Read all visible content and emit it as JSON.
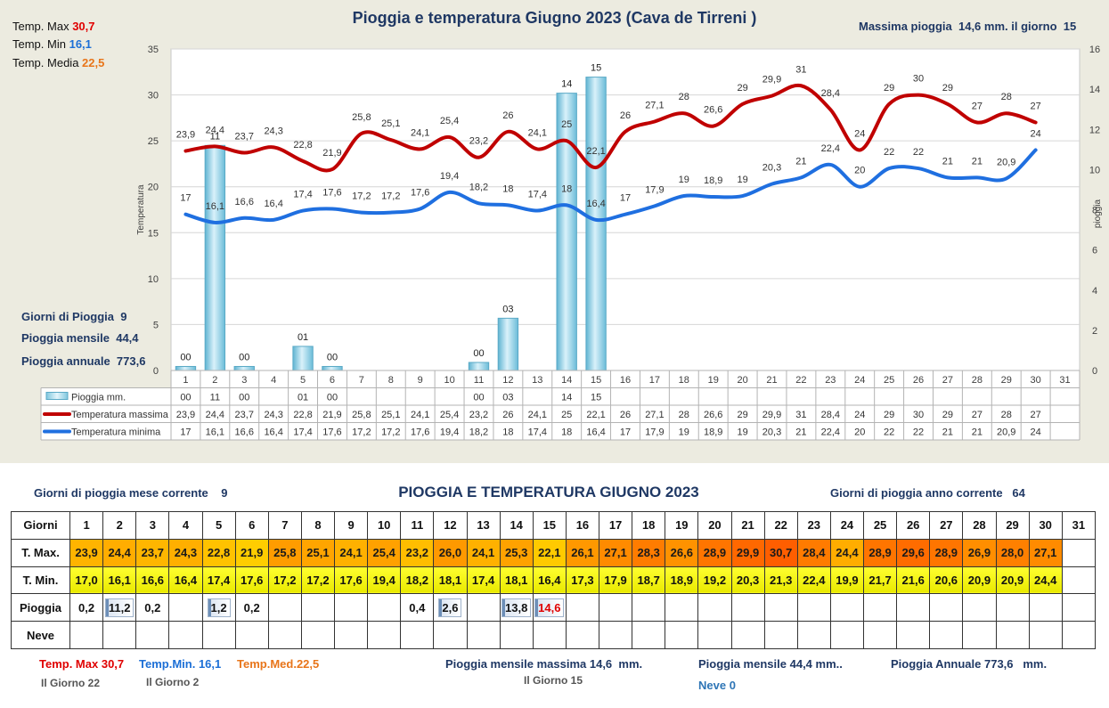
{
  "chart": {
    "title": "Pioggia e temperatura Giugno 2023 (Cava de Tirreni )",
    "max_rain_label": "Massima pioggia",
    "max_rain_value": "14,6",
    "max_rain_unit_day": "mm. il giorno",
    "max_rain_day": "15",
    "left_axis_label": "Temperatura",
    "right_axis_label": "pioggia",
    "stats": {
      "tmax_label": "Temp. Max",
      "tmax_value": "30,7",
      "tmin_label": "Temp. Min",
      "tmin_value": "16,1",
      "tmed_label": "Temp. Media",
      "tmed_value": "22,5"
    },
    "left_stats": {
      "rain_days_label": "Giorni di Pioggia",
      "rain_days_value": "9",
      "monthly_label": "Pioggia mensile",
      "monthly_value": "44,4",
      "annual_label": "Pioggia annuale",
      "annual_value": "773,6"
    },
    "legend": {
      "rain": "Pioggia mm.",
      "tmax": "Temperatura massima",
      "tmin": "Temperatura minima"
    }
  },
  "chart_data": {
    "type": "bar",
    "categories": [
      "1",
      "2",
      "3",
      "4",
      "5",
      "6",
      "7",
      "8",
      "9",
      "10",
      "11",
      "12",
      "13",
      "14",
      "15",
      "16",
      "17",
      "18",
      "19",
      "20",
      "21",
      "22",
      "23",
      "24",
      "25",
      "26",
      "27",
      "28",
      "29",
      "30",
      "31"
    ],
    "ylim": [
      0,
      35
    ],
    "yticks": [
      "0",
      "5",
      "10",
      "15",
      "20",
      "25",
      "30",
      "35"
    ],
    "y2lim": [
      0,
      16
    ],
    "y2ticks": [
      "0",
      "2",
      "4",
      "6",
      "8",
      "10",
      "12",
      "14",
      "16"
    ],
    "colors": {
      "rain": "#8fd0e6",
      "tmax": "#c00000",
      "tmin": "#1f6fe0"
    },
    "series": [
      {
        "name": "Pioggia mm.",
        "axis": "right",
        "values": [
          0.2,
          11.2,
          0.2,
          null,
          1.2,
          0.2,
          null,
          null,
          null,
          null,
          0.4,
          2.6,
          null,
          13.8,
          14.6,
          null,
          null,
          null,
          null,
          null,
          null,
          null,
          null,
          null,
          null,
          null,
          null,
          null,
          null,
          null,
          null
        ],
        "labels": [
          "00",
          "11",
          "00",
          "",
          "01",
          "00",
          "",
          "",
          "",
          "",
          "00",
          "03",
          "",
          "14",
          "15",
          "",
          "",
          "",
          "",
          "",
          "",
          "",
          "",
          "",
          "",
          "",
          "",
          "",
          "",
          "",
          ""
        ]
      },
      {
        "name": "Temperatura massima",
        "axis": "left",
        "values": [
          23.9,
          24.4,
          23.7,
          24.3,
          22.8,
          21.9,
          25.8,
          25.1,
          24.1,
          25.4,
          23.2,
          26,
          24.1,
          25,
          22.1,
          26,
          27.1,
          28,
          26.6,
          29,
          29.9,
          31,
          28.4,
          24,
          29,
          30,
          29,
          27,
          28,
          27,
          null
        ],
        "labels": [
          "23,9",
          "24,4",
          "23,7",
          "24,3",
          "22,8",
          "21,9",
          "25,8",
          "25,1",
          "24,1",
          "25,4",
          "23,2",
          "26",
          "24,1",
          "25",
          "22,1",
          "26",
          "27,1",
          "28",
          "26,6",
          "29",
          "29,9",
          "31",
          "28,4",
          "24",
          "29",
          "30",
          "29",
          "27",
          "28",
          "27",
          ""
        ]
      },
      {
        "name": "Temperatura minima",
        "axis": "left",
        "values": [
          17,
          16.1,
          16.6,
          16.4,
          17.4,
          17.6,
          17.2,
          17.2,
          17.6,
          19.4,
          18.2,
          18,
          17.4,
          18,
          16.4,
          17,
          17.9,
          19,
          18.9,
          19,
          20.3,
          21,
          22.4,
          20,
          22,
          22,
          21,
          21,
          20.9,
          24,
          null
        ],
        "labels": [
          "17",
          "16,1",
          "16,6",
          "16,4",
          "17,4",
          "17,6",
          "17,2",
          "17,2",
          "17,6",
          "19,4",
          "18,2",
          "18",
          "17,4",
          "18",
          "16,4",
          "17",
          "17,9",
          "19",
          "18,9",
          "19",
          "20,3",
          "21",
          "22,4",
          "20",
          "22",
          "22",
          "21",
          "21",
          "20,9",
          "24",
          ""
        ]
      }
    ]
  },
  "table": {
    "title": "PIOGGIA E TEMPERATURA GIUGNO 2023",
    "rain_days_month_label": "Giorni di pioggia mese corrente",
    "rain_days_month_value": "9",
    "rain_days_year_label": "Giorni di pioggia anno corrente",
    "rain_days_year_value": "64",
    "row_headers": {
      "days": "Giorni",
      "tmax": "T. Max.",
      "tmin": "T. Min.",
      "rain": "Pioggia",
      "snow": "Neve"
    },
    "days": [
      "1",
      "2",
      "3",
      "4",
      "5",
      "6",
      "7",
      "8",
      "9",
      "10",
      "11",
      "12",
      "13",
      "14",
      "15",
      "16",
      "17",
      "18",
      "19",
      "20",
      "21",
      "22",
      "23",
      "24",
      "25",
      "26",
      "27",
      "28",
      "29",
      "30",
      "31"
    ],
    "tmax": [
      "23,9",
      "24,4",
      "23,7",
      "24,3",
      "22,8",
      "21,9",
      "25,8",
      "25,1",
      "24,1",
      "25,4",
      "23,2",
      "26,0",
      "24,1",
      "25,3",
      "22,1",
      "26,1",
      "27,1",
      "28,3",
      "26,6",
      "28,9",
      "29,9",
      "30,7",
      "28,4",
      "24,4",
      "28,9",
      "29,6",
      "28,9",
      "26,9",
      "28,0",
      "27,1",
      ""
    ],
    "tmin": [
      "17,0",
      "16,1",
      "16,6",
      "16,4",
      "17,4",
      "17,6",
      "17,2",
      "17,2",
      "17,6",
      "19,4",
      "18,2",
      "18,1",
      "17,4",
      "18,1",
      "16,4",
      "17,3",
      "17,9",
      "18,7",
      "18,9",
      "19,2",
      "20,3",
      "21,3",
      "22,4",
      "19,9",
      "21,7",
      "21,6",
      "20,6",
      "20,9",
      "20,9",
      "24,4",
      ""
    ],
    "rain": [
      "0,2",
      "11,2",
      "0,2",
      "",
      "1,2",
      "0,2",
      "",
      "",
      "",
      "",
      "0,4",
      "2,6",
      "",
      "13,8",
      "14,6",
      "",
      "",
      "",
      "",
      "",
      "",
      "",
      "",
      "",
      "",
      "",
      "",
      "",
      "",
      "",
      ""
    ],
    "rain_max_index": 14,
    "tmax_values": [
      23.9,
      24.4,
      23.7,
      24.3,
      22.8,
      21.9,
      25.8,
      25.1,
      24.1,
      25.4,
      23.2,
      26.0,
      24.1,
      25.3,
      22.1,
      26.1,
      27.1,
      28.3,
      26.6,
      28.9,
      29.9,
      30.7,
      28.4,
      24.4,
      28.9,
      29.6,
      28.9,
      26.9,
      28.0,
      27.1,
      null
    ]
  },
  "footer": {
    "tmax_label": "Temp. Max",
    "tmax_value": "30,7",
    "tmax_day": "Il Giorno  22",
    "tmin_label": "Temp.Min.",
    "tmin_value": "16,1",
    "tmin_day": "Il Giorno  2",
    "tmed_label": "Temp.Med.",
    "tmed_value": "22,5",
    "monthly_max_label": "Pioggia mensile massima",
    "monthly_max_value": "14,6",
    "monthly_max_unit": "mm.",
    "monthly_max_day": "Il Giorno 15",
    "monthly_label": "Pioggia mensile",
    "monthly_value": "44,4",
    "monthly_unit": "mm..",
    "annual_label": "Pioggia Annuale",
    "annual_value": "773,6",
    "annual_unit": "mm.",
    "snow_label": "Neve",
    "snow_value": "0"
  }
}
